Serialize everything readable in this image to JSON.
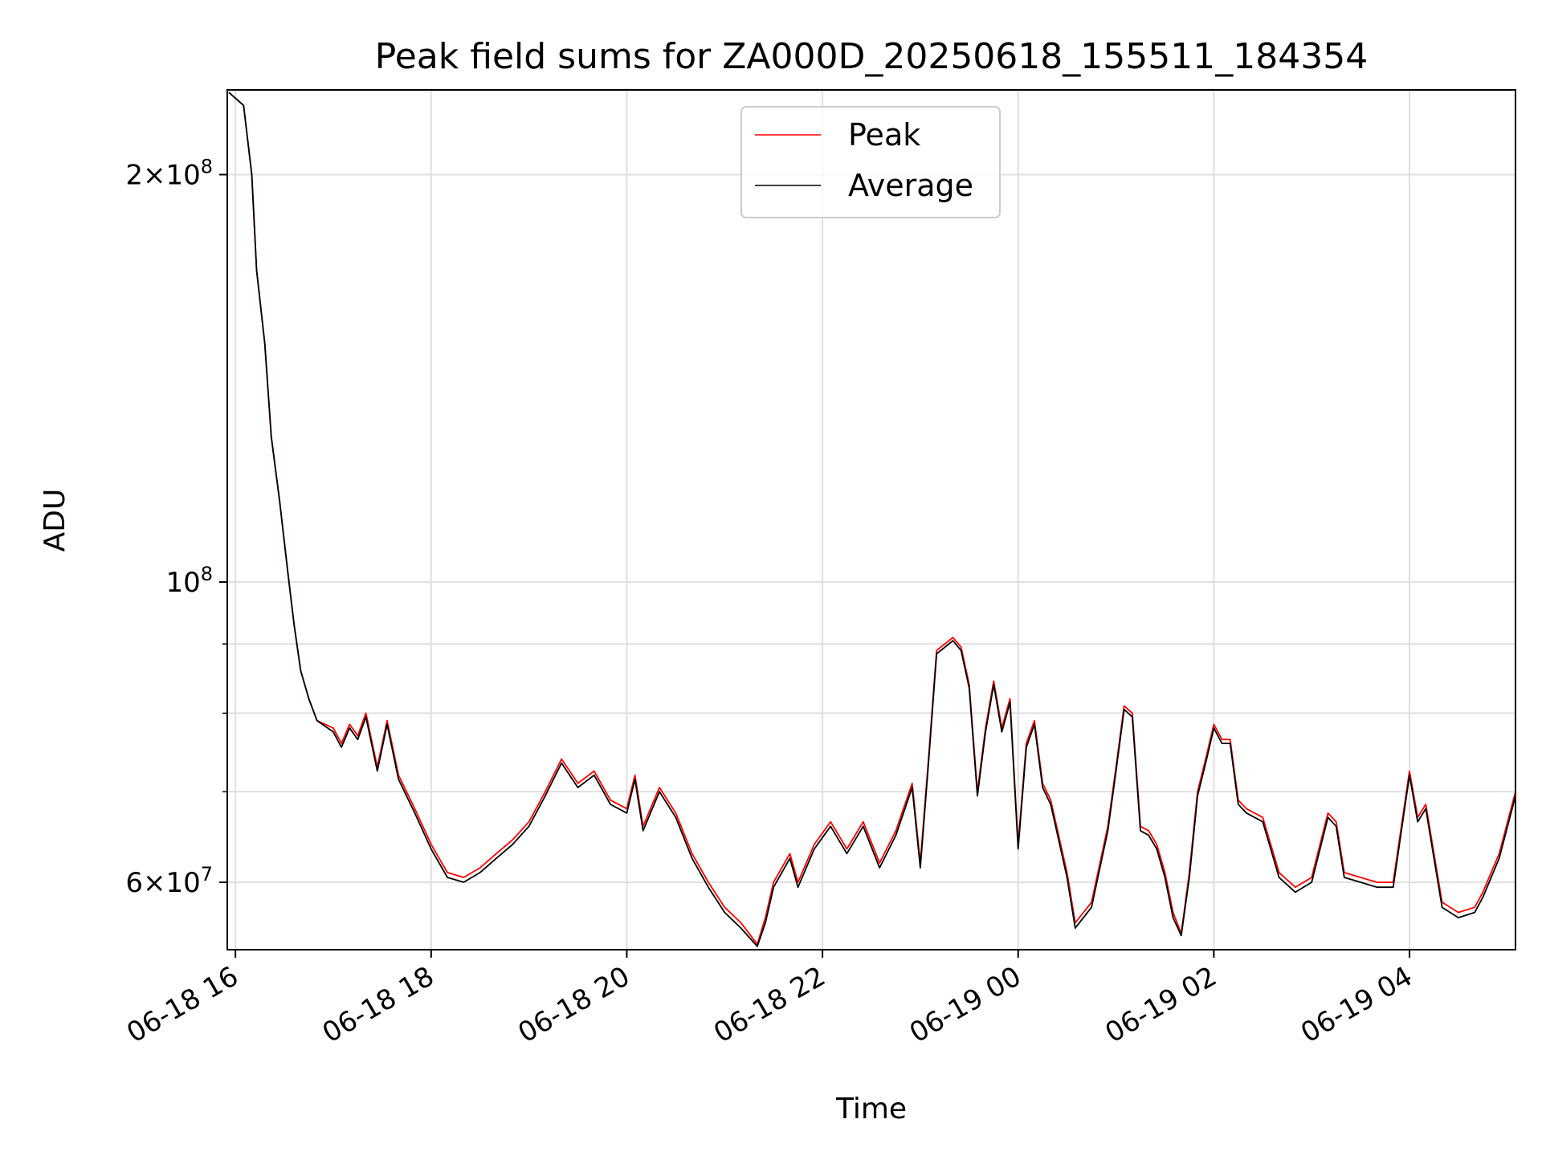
{
  "chart_data": {
    "type": "line",
    "title": "Peak field sums for ZA000D_20250618_155511_184354",
    "xlabel": "Time",
    "ylabel": "ADU",
    "x_range": [
      "2025-06-18 15:55",
      "2025-06-19 05:05"
    ],
    "yscale": "log",
    "ylim": [
      53500000,
      231000000
    ],
    "x_ticks": [
      "06-18 16",
      "06-18 18",
      "06-18 20",
      "06-18 22",
      "06-19 00",
      "06-19 02",
      "06-19 04"
    ],
    "y_major_ticks": [
      {
        "value": 60000000,
        "mantissa": "6",
        "exp": "7"
      },
      {
        "value": 100000000,
        "mantissa": "",
        "exp": "8"
      },
      {
        "value": 200000000,
        "mantissa": "2",
        "exp": "8"
      }
    ],
    "y_minor_ticks": [
      70000000,
      80000000,
      90000000
    ],
    "grid": true,
    "legend_position": "upper center",
    "series": [
      {
        "name": "Peak",
        "color": "#ff0000",
        "points": [
          [
            "2025-06-18 15:56",
            230000000
          ],
          [
            "2025-06-18 16:05",
            225000000
          ],
          [
            "2025-06-18 16:10",
            200000000
          ],
          [
            "2025-06-18 16:13",
            170000000
          ],
          [
            "2025-06-18 16:18",
            150000000
          ],
          [
            "2025-06-18 16:22",
            128000000
          ],
          [
            "2025-06-18 16:27",
            115000000
          ],
          [
            "2025-06-18 16:32",
            102000000
          ],
          [
            "2025-06-18 16:36",
            93000000
          ],
          [
            "2025-06-18 16:40",
            86000000
          ],
          [
            "2025-06-18 16:45",
            82000000
          ],
          [
            "2025-06-18 16:50",
            79000000
          ],
          [
            "2025-06-18 17:00",
            78000000
          ],
          [
            "2025-06-18 17:05",
            76000000
          ],
          [
            "2025-06-18 17:10",
            78500000
          ],
          [
            "2025-06-18 17:15",
            77000000
          ],
          [
            "2025-06-18 17:20",
            80000000
          ],
          [
            "2025-06-18 17:27",
            73000000
          ],
          [
            "2025-06-18 17:33",
            79000000
          ],
          [
            "2025-06-18 17:40",
            72000000
          ],
          [
            "2025-06-18 17:50",
            68000000
          ],
          [
            "2025-06-18 18:00",
            64000000
          ],
          [
            "2025-06-18 18:10",
            61000000
          ],
          [
            "2025-06-18 18:20",
            60500000
          ],
          [
            "2025-06-18 18:30",
            61500000
          ],
          [
            "2025-06-18 18:40",
            63000000
          ],
          [
            "2025-06-18 18:50",
            64500000
          ],
          [
            "2025-06-18 19:00",
            66500000
          ],
          [
            "2025-06-18 19:10",
            70000000
          ],
          [
            "2025-06-18 19:20",
            74000000
          ],
          [
            "2025-06-18 19:30",
            71000000
          ],
          [
            "2025-06-18 19:40",
            72500000
          ],
          [
            "2025-06-18 19:50",
            69000000
          ],
          [
            "2025-06-18 20:00",
            68000000
          ],
          [
            "2025-06-18 20:05",
            72000000
          ],
          [
            "2025-06-18 20:10",
            66000000
          ],
          [
            "2025-06-18 20:20",
            70500000
          ],
          [
            "2025-06-18 20:30",
            67500000
          ],
          [
            "2025-06-18 20:40",
            63000000
          ],
          [
            "2025-06-18 20:50",
            60000000
          ],
          [
            "2025-06-18 21:00",
            57500000
          ],
          [
            "2025-06-18 21:10",
            56000000
          ],
          [
            "2025-06-18 21:20",
            54000000
          ],
          [
            "2025-06-18 21:25",
            56500000
          ],
          [
            "2025-06-18 21:30",
            60000000
          ],
          [
            "2025-06-18 21:40",
            63000000
          ],
          [
            "2025-06-18 21:45",
            60000000
          ],
          [
            "2025-06-18 21:55",
            64000000
          ],
          [
            "2025-06-18 22:05",
            66500000
          ],
          [
            "2025-06-18 22:15",
            63500000
          ],
          [
            "2025-06-18 22:25",
            66500000
          ],
          [
            "2025-06-18 22:35",
            62000000
          ],
          [
            "2025-06-18 22:45",
            65500000
          ],
          [
            "2025-06-18 22:55",
            71000000
          ],
          [
            "2025-06-18 23:00",
            62000000
          ],
          [
            "2025-06-18 23:05",
            74000000
          ],
          [
            "2025-06-18 23:10",
            89000000
          ],
          [
            "2025-06-18 23:20",
            91000000
          ],
          [
            "2025-06-18 23:25",
            89500000
          ],
          [
            "2025-06-18 23:30",
            84000000
          ],
          [
            "2025-06-18 23:35",
            70000000
          ],
          [
            "2025-06-18 23:40",
            78000000
          ],
          [
            "2025-06-18 23:45",
            84500000
          ],
          [
            "2025-06-18 23:50",
            78000000
          ],
          [
            "2025-06-18 23:55",
            82000000
          ],
          [
            "2025-06-19 00:00",
            64000000
          ],
          [
            "2025-06-19 00:05",
            76000000
          ],
          [
            "2025-06-19 00:10",
            79000000
          ],
          [
            "2025-06-19 00:15",
            71000000
          ],
          [
            "2025-06-19 00:20",
            69000000
          ],
          [
            "2025-06-19 00:30",
            61000000
          ],
          [
            "2025-06-19 00:35",
            56000000
          ],
          [
            "2025-06-19 00:45",
            58000000
          ],
          [
            "2025-06-19 00:55",
            66000000
          ],
          [
            "2025-06-19 01:00",
            73000000
          ],
          [
            "2025-06-19 01:05",
            81000000
          ],
          [
            "2025-06-19 01:10",
            80000000
          ],
          [
            "2025-06-19 01:15",
            66000000
          ],
          [
            "2025-06-19 01:20",
            65500000
          ],
          [
            "2025-06-19 01:25",
            64000000
          ],
          [
            "2025-06-19 01:30",
            61000000
          ],
          [
            "2025-06-19 01:35",
            57000000
          ],
          [
            "2025-06-19 01:40",
            55000000
          ],
          [
            "2025-06-19 01:45",
            61000000
          ],
          [
            "2025-06-19 01:50",
            70000000
          ],
          [
            "2025-06-19 01:55",
            74000000
          ],
          [
            "2025-06-19 02:00",
            78500000
          ],
          [
            "2025-06-19 02:05",
            76500000
          ],
          [
            "2025-06-19 02:10",
            76500000
          ],
          [
            "2025-06-19 02:15",
            69000000
          ],
          [
            "2025-06-19 02:20",
            68000000
          ],
          [
            "2025-06-19 02:30",
            67000000
          ],
          [
            "2025-06-19 02:40",
            61000000
          ],
          [
            "2025-06-19 02:50",
            59500000
          ],
          [
            "2025-06-19 03:00",
            60500000
          ],
          [
            "2025-06-19 03:10",
            67500000
          ],
          [
            "2025-06-19 03:15",
            66500000
          ],
          [
            "2025-06-19 03:20",
            61000000
          ],
          [
            "2025-06-19 03:30",
            60500000
          ],
          [
            "2025-06-19 03:40",
            60000000
          ],
          [
            "2025-06-19 03:50",
            60000000
          ],
          [
            "2025-06-19 04:00",
            72500000
          ],
          [
            "2025-06-19 04:05",
            67000000
          ],
          [
            "2025-06-19 04:10",
            68500000
          ],
          [
            "2025-06-19 04:20",
            58000000
          ],
          [
            "2025-06-19 04:30",
            57000000
          ],
          [
            "2025-06-19 04:40",
            57500000
          ],
          [
            "2025-06-19 04:45",
            59000000
          ],
          [
            "2025-06-19 04:55",
            63000000
          ],
          [
            "2025-06-19 05:05",
            70000000
          ]
        ]
      },
      {
        "name": "Average",
        "color": "#000000",
        "points": [
          [
            "2025-06-18 15:56",
            230000000
          ],
          [
            "2025-06-18 16:05",
            225000000
          ],
          [
            "2025-06-18 16:10",
            200000000
          ],
          [
            "2025-06-18 16:13",
            170000000
          ],
          [
            "2025-06-18 16:18",
            150000000
          ],
          [
            "2025-06-18 16:22",
            128000000
          ],
          [
            "2025-06-18 16:27",
            115000000
          ],
          [
            "2025-06-18 16:32",
            102000000
          ],
          [
            "2025-06-18 16:36",
            93000000
          ],
          [
            "2025-06-18 16:40",
            86000000
          ],
          [
            "2025-06-18 16:45",
            82000000
          ],
          [
            "2025-06-18 16:50",
            79000000
          ],
          [
            "2025-06-18 17:00",
            77500000
          ],
          [
            "2025-06-18 17:05",
            75500000
          ],
          [
            "2025-06-18 17:10",
            78000000
          ],
          [
            "2025-06-18 17:15",
            76500000
          ],
          [
            "2025-06-18 17:20",
            79500000
          ],
          [
            "2025-06-18 17:27",
            72500000
          ],
          [
            "2025-06-18 17:33",
            78500000
          ],
          [
            "2025-06-18 17:40",
            71500000
          ],
          [
            "2025-06-18 17:50",
            67500000
          ],
          [
            "2025-06-18 18:00",
            63500000
          ],
          [
            "2025-06-18 18:10",
            60500000
          ],
          [
            "2025-06-18 18:20",
            60000000
          ],
          [
            "2025-06-18 18:30",
            61000000
          ],
          [
            "2025-06-18 18:40",
            62500000
          ],
          [
            "2025-06-18 18:50",
            64000000
          ],
          [
            "2025-06-18 19:00",
            66000000
          ],
          [
            "2025-06-18 19:10",
            69500000
          ],
          [
            "2025-06-18 19:20",
            73500000
          ],
          [
            "2025-06-18 19:30",
            70500000
          ],
          [
            "2025-06-18 19:40",
            72000000
          ],
          [
            "2025-06-18 19:50",
            68500000
          ],
          [
            "2025-06-18 20:00",
            67500000
          ],
          [
            "2025-06-18 20:05",
            71500000
          ],
          [
            "2025-06-18 20:10",
            65500000
          ],
          [
            "2025-06-18 20:20",
            70000000
          ],
          [
            "2025-06-18 20:30",
            67000000
          ],
          [
            "2025-06-18 20:40",
            62500000
          ],
          [
            "2025-06-18 20:50",
            59500000
          ],
          [
            "2025-06-18 21:00",
            57000000
          ],
          [
            "2025-06-18 21:10",
            55500000
          ],
          [
            "2025-06-18 21:20",
            53800000
          ],
          [
            "2025-06-18 21:25",
            56000000
          ],
          [
            "2025-06-18 21:30",
            59500000
          ],
          [
            "2025-06-18 21:40",
            62500000
          ],
          [
            "2025-06-18 21:45",
            59500000
          ],
          [
            "2025-06-18 21:55",
            63500000
          ],
          [
            "2025-06-18 22:05",
            66000000
          ],
          [
            "2025-06-18 22:15",
            63000000
          ],
          [
            "2025-06-18 22:25",
            66000000
          ],
          [
            "2025-06-18 22:35",
            61500000
          ],
          [
            "2025-06-18 22:45",
            65000000
          ],
          [
            "2025-06-18 22:55",
            70500000
          ],
          [
            "2025-06-18 23:00",
            61500000
          ],
          [
            "2025-06-18 23:05",
            73500000
          ],
          [
            "2025-06-18 23:10",
            88500000
          ],
          [
            "2025-06-18 23:20",
            90500000
          ],
          [
            "2025-06-18 23:25",
            89000000
          ],
          [
            "2025-06-18 23:30",
            83500000
          ],
          [
            "2025-06-18 23:35",
            69500000
          ],
          [
            "2025-06-18 23:40",
            77500000
          ],
          [
            "2025-06-18 23:45",
            84000000
          ],
          [
            "2025-06-18 23:50",
            77500000
          ],
          [
            "2025-06-18 23:55",
            81500000
          ],
          [
            "2025-06-19 00:00",
            63500000
          ],
          [
            "2025-06-19 00:05",
            75500000
          ],
          [
            "2025-06-19 00:10",
            78500000
          ],
          [
            "2025-06-19 00:15",
            70500000
          ],
          [
            "2025-06-19 00:20",
            68500000
          ],
          [
            "2025-06-19 00:30",
            60500000
          ],
          [
            "2025-06-19 00:35",
            55500000
          ],
          [
            "2025-06-19 00:45",
            57500000
          ],
          [
            "2025-06-19 00:55",
            65500000
          ],
          [
            "2025-06-19 01:00",
            72500000
          ],
          [
            "2025-06-19 01:05",
            80500000
          ],
          [
            "2025-06-19 01:10",
            79500000
          ],
          [
            "2025-06-19 01:15",
            65500000
          ],
          [
            "2025-06-19 01:20",
            65000000
          ],
          [
            "2025-06-19 01:25",
            63500000
          ],
          [
            "2025-06-19 01:30",
            60500000
          ],
          [
            "2025-06-19 01:35",
            56500000
          ],
          [
            "2025-06-19 01:40",
            54800000
          ],
          [
            "2025-06-19 01:45",
            60500000
          ],
          [
            "2025-06-19 01:50",
            69500000
          ],
          [
            "2025-06-19 01:55",
            73500000
          ],
          [
            "2025-06-19 02:00",
            78000000
          ],
          [
            "2025-06-19 02:05",
            76000000
          ],
          [
            "2025-06-19 02:10",
            76000000
          ],
          [
            "2025-06-19 02:15",
            68500000
          ],
          [
            "2025-06-19 02:20",
            67500000
          ],
          [
            "2025-06-19 02:30",
            66500000
          ],
          [
            "2025-06-19 02:40",
            60500000
          ],
          [
            "2025-06-19 02:50",
            59000000
          ],
          [
            "2025-06-19 03:00",
            60000000
          ],
          [
            "2025-06-19 03:10",
            67000000
          ],
          [
            "2025-06-19 03:15",
            66000000
          ],
          [
            "2025-06-19 03:20",
            60500000
          ],
          [
            "2025-06-19 03:30",
            60000000
          ],
          [
            "2025-06-19 03:40",
            59500000
          ],
          [
            "2025-06-19 03:50",
            59500000
          ],
          [
            "2025-06-19 04:00",
            72000000
          ],
          [
            "2025-06-19 04:05",
            66500000
          ],
          [
            "2025-06-19 04:10",
            68000000
          ],
          [
            "2025-06-19 04:20",
            57500000
          ],
          [
            "2025-06-19 04:30",
            56500000
          ],
          [
            "2025-06-19 04:40",
            57000000
          ],
          [
            "2025-06-19 04:45",
            58500000
          ],
          [
            "2025-06-19 04:55",
            62500000
          ],
          [
            "2025-06-19 05:05",
            69500000
          ]
        ]
      }
    ]
  }
}
